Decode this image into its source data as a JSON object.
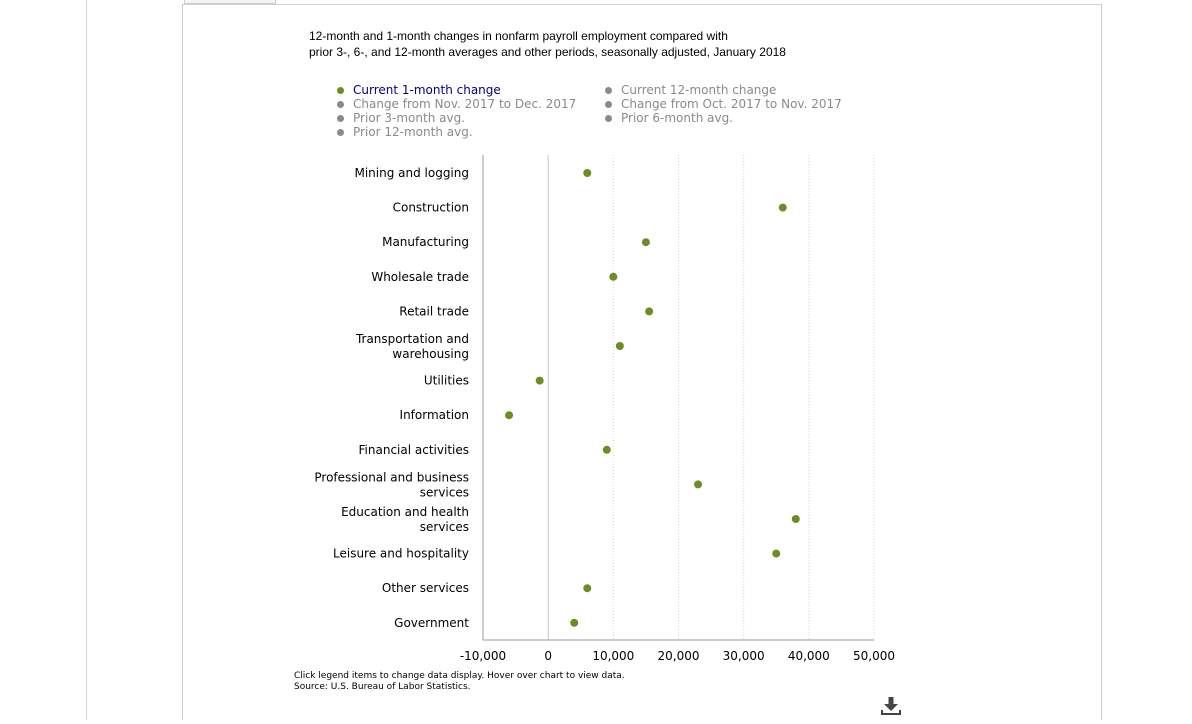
{
  "chart_data": {
    "type": "scatter",
    "title": "12-month and 1-month changes in nonfarm payroll employment compared with\nprior 3-, 6-, and 12-month averages and other periods, seasonally adjusted, January 2018",
    "categories": [
      "Mining and logging",
      "Construction",
      "Manufacturing",
      "Wholesale trade",
      "Retail trade",
      "Transportation and warehousing",
      "Utilities",
      "Information",
      "Financial activities",
      "Professional and business services",
      "Education and health services",
      "Leisure and hospitality",
      "Other services",
      "Government"
    ],
    "category_lines": [
      [
        "Mining and logging"
      ],
      [
        "Construction"
      ],
      [
        "Manufacturing"
      ],
      [
        "Wholesale trade"
      ],
      [
        "Retail trade"
      ],
      [
        "Transportation and",
        "warehousing"
      ],
      [
        "Utilities"
      ],
      [
        "Information"
      ],
      [
        "Financial activities"
      ],
      [
        "Professional and business",
        "services"
      ],
      [
        "Education and health",
        "services"
      ],
      [
        "Leisure and hospitality"
      ],
      [
        "Other services"
      ],
      [
        "Government"
      ]
    ],
    "series": [
      {
        "name": "Current 1-month change",
        "color": "#6b8e23",
        "values": [
          6000,
          36000,
          15000,
          10000,
          15500,
          11000,
          -1300,
          -6000,
          9000,
          23000,
          38000,
          35000,
          6000,
          4000
        ]
      }
    ],
    "xlim": [
      -10000,
      50000
    ],
    "xticks": [
      -10000,
      0,
      10000,
      20000,
      30000,
      40000,
      50000
    ],
    "xtick_labels": [
      "-10,000",
      "0",
      "10,000",
      "20,000",
      "30,000",
      "40,000",
      "50,000"
    ],
    "grid": "vertical dotted",
    "legend": {
      "placement": "top",
      "columns": [
        [
          {
            "label": "Current 1-month change",
            "active": true,
            "color": "#6b8e23"
          },
          {
            "label": "Change from Nov. 2017 to Dec. 2017",
            "active": false,
            "color": "#8a8a8a"
          },
          {
            "label": "Prior 3-month avg.",
            "active": false,
            "color": "#8a8a8a"
          },
          {
            "label": "Prior 12-month avg.",
            "active": false,
            "color": "#8a8a8a"
          }
        ],
        [
          {
            "label": "Current 12-month change",
            "active": false,
            "color": "#8a8a8a"
          },
          {
            "label": "Change from Oct. 2017 to Nov. 2017",
            "active": false,
            "color": "#8a8a8a"
          },
          {
            "label": "Prior 6-month avg.",
            "active": false,
            "color": "#8a8a8a"
          }
        ]
      ]
    }
  },
  "notes": {
    "line1": "Click legend items to change data display. Hover over chart to view data.",
    "line2": "Source: U.S. Bureau of Labor Statistics."
  },
  "icons": {
    "download": "download-icon"
  }
}
